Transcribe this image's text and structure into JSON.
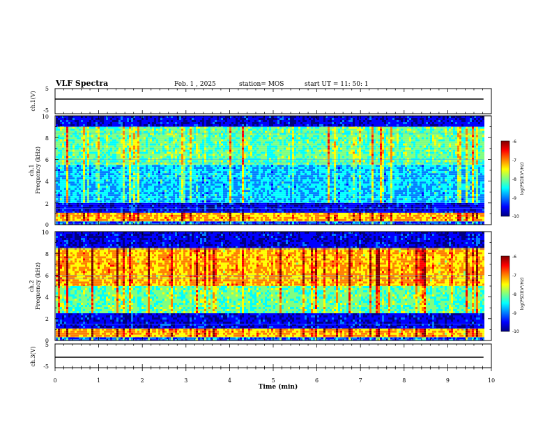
{
  "header": {
    "title": "VLF Spectra",
    "date": "Feb. 1 , 2025",
    "station": "station= MOS",
    "start": "start UT = 11: 50: 1"
  },
  "chart_data": [
    {
      "type": "line",
      "panel": "ch1-waveform",
      "ylabel": "ch.1(V)",
      "ylim": [
        -5,
        5
      ],
      "yticks": [
        "5",
        "-5"
      ],
      "xlim": [
        0,
        10
      ],
      "baseline": 0
    },
    {
      "type": "heatmap",
      "panel": "ch1-spectrogram",
      "ylabel": "ch.1 Frequency (kHz)",
      "ylabel_line1": "ch.1",
      "ylabel_line2": "Frequency (kHz)",
      "ylim": [
        0,
        10
      ],
      "yticks": [
        "0",
        "2",
        "4",
        "6",
        "8",
        "10"
      ],
      "xlim": [
        0,
        10
      ],
      "data_end_min": 9.82,
      "bands": [
        {
          "from_khz": 0,
          "to_khz": 0.3,
          "level": "blue"
        },
        {
          "from_khz": 0.3,
          "to_khz": 1.1,
          "level": "yellow-red"
        },
        {
          "from_khz": 1.1,
          "to_khz": 2.0,
          "level": "dark-blue"
        },
        {
          "from_khz": 2.0,
          "to_khz": 5.5,
          "level": "blue-cyan"
        },
        {
          "from_khz": 5.5,
          "to_khz": 9.0,
          "level": "cyan-green"
        },
        {
          "from_khz": 9.0,
          "to_khz": 10,
          "level": "dark-blue"
        }
      ],
      "colorbar": {
        "min": -10,
        "max": -6,
        "ticks": [
          "-6",
          "-7",
          "-8",
          "-9",
          "-10"
        ],
        "label": "log(PSD)(V²/Hz)"
      }
    },
    {
      "type": "heatmap",
      "panel": "ch2-spectrogram",
      "ylabel": "ch.2 Frequency (kHz)",
      "ylabel_line1": "ch.2",
      "ylabel_line2": "Frequency (kHz)",
      "ylim": [
        0,
        10
      ],
      "yticks": [
        "0",
        "2",
        "4",
        "6",
        "8",
        "10"
      ],
      "xlim": [
        0,
        10
      ],
      "data_end_min": 9.82,
      "bands": [
        {
          "from_khz": 0,
          "to_khz": 0.3,
          "level": "blue"
        },
        {
          "from_khz": 0.3,
          "to_khz": 1.1,
          "level": "yellow-red"
        },
        {
          "from_khz": 1.1,
          "to_khz": 2.5,
          "level": "dark-blue"
        },
        {
          "from_khz": 2.5,
          "to_khz": 5.0,
          "level": "cyan-green"
        },
        {
          "from_khz": 5.0,
          "to_khz": 8.5,
          "level": "yellow-red"
        },
        {
          "from_khz": 8.5,
          "to_khz": 10,
          "level": "dark-blue"
        }
      ],
      "colorbar": {
        "min": -10,
        "max": -6,
        "ticks": [
          "-6",
          "-7",
          "-8",
          "-9",
          "-10"
        ],
        "label": "log(PSD)(V²/Hz)"
      }
    },
    {
      "type": "line",
      "panel": "ch2-waveform",
      "ylabel": "ch.3(V)",
      "ylim": [
        -5,
        5
      ],
      "yticks": [
        "5",
        "-5"
      ],
      "xlim": [
        0,
        10
      ],
      "baseline": 0
    }
  ],
  "xaxis": {
    "label": "Time (min)",
    "ticks": [
      "0",
      "1",
      "2",
      "3",
      "4",
      "5",
      "6",
      "7",
      "8",
      "9",
      "10"
    ]
  },
  "colors": {
    "jet": [
      "#000080",
      "#0000ff",
      "#0080ff",
      "#00ffff",
      "#80ff80",
      "#ffff00",
      "#ff8000",
      "#ff0000",
      "#800000"
    ]
  }
}
